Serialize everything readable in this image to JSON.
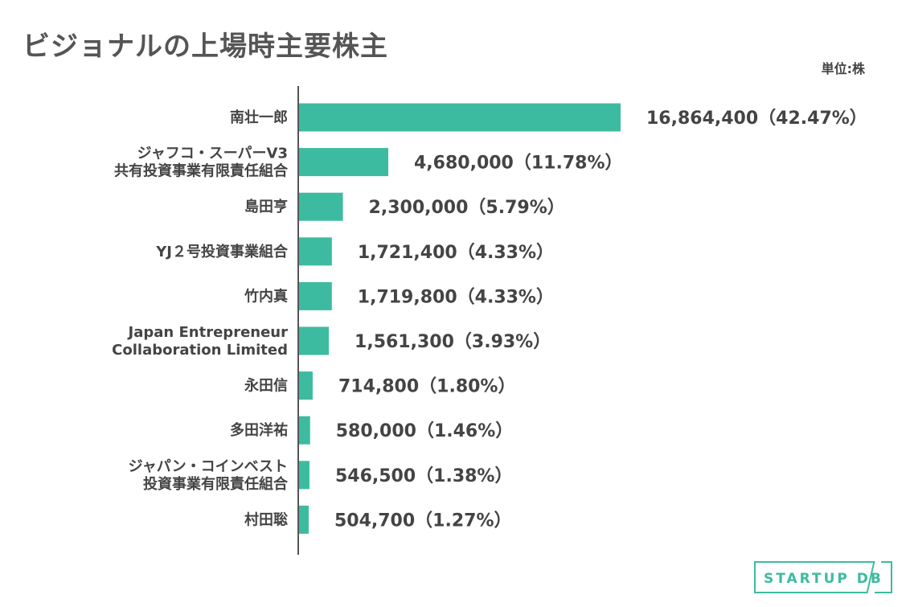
{
  "title": "ビジョナルの上場時主要株主",
  "unit": "単位:株",
  "logo_text": "STARTUP DB",
  "colors": {
    "bar": "#3dbba0",
    "axis": "#555555",
    "text": "#444444",
    "logo": "#3dbba0"
  },
  "chart_data": {
    "type": "bar",
    "orientation": "horizontal",
    "categories": [
      [
        "南壮一郎"
      ],
      [
        "ジャフコ・スーパーV3",
        "共有投資事業有限責任組合"
      ],
      [
        "島田亨"
      ],
      [
        "YJ２号投資事業組合"
      ],
      [
        "竹内真"
      ],
      [
        "Japan Entrepreneur",
        "Collaboration Limited"
      ],
      [
        "永田信"
      ],
      [
        "多田洋祐"
      ],
      [
        "ジャパン・コインベスト",
        "投資事業有限責任組合"
      ],
      [
        "村田聡"
      ]
    ],
    "values": [
      16864400,
      4680000,
      2300000,
      1721400,
      1719800,
      1561300,
      714800,
      580000,
      546500,
      504700
    ],
    "value_labels": [
      "16,864,400（42.47%）",
      "4,680,000（11.78%）",
      "2,300,000（5.79%）",
      "1,721,400（4.33%）",
      "1,719,800（4.33%）",
      "1,561,300（3.93%）",
      "714,800（1.80%）",
      "580,000（1.46%）",
      "546,500（1.38%）",
      "504,700（1.27%）"
    ],
    "xlim": [
      0,
      16864400
    ],
    "grid": false,
    "legend": "none"
  }
}
